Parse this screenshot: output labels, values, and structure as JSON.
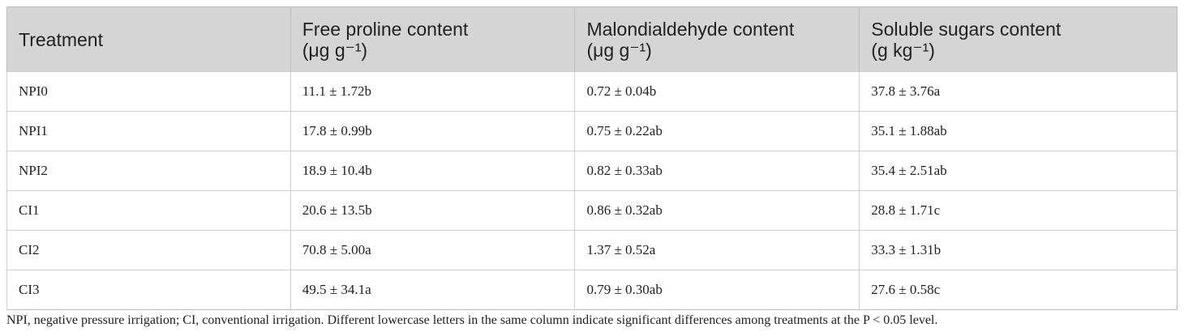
{
  "table": {
    "header": [
      [
        "Treatment"
      ],
      [
        "Free proline content",
        "(μg g⁻¹)"
      ],
      [
        "Malondialdehyde content",
        "(μg g⁻¹)"
      ],
      [
        "Soluble sugars content",
        "(g kg⁻¹)"
      ]
    ],
    "rows": [
      [
        "NPI0",
        "11.1 ± 1.72b",
        "0.72 ± 0.04b",
        "37.8 ± 3.76a"
      ],
      [
        "NPI1",
        "17.8 ± 0.99b",
        "0.75 ± 0.22ab",
        "35.1 ± 1.88ab"
      ],
      [
        "NPI2",
        "18.9 ± 10.4b",
        "0.82 ± 0.33ab",
        "35.4 ± 2.51ab"
      ],
      [
        "CI1",
        "20.6 ± 13.5b",
        "0.86 ± 0.32ab",
        "28.8 ± 1.71c"
      ],
      [
        "CI2",
        "70.8 ± 5.00a",
        "1.37 ± 0.52a",
        "33.3 ± 1.31b"
      ],
      [
        "CI3",
        "49.5 ± 34.1a",
        "0.79 ± 0.30ab",
        "27.6 ± 0.58c"
      ]
    ]
  },
  "footnote": "NPI, negative pressure irrigation; CI, conventional irrigation. Different lowercase letters in the same column indicate significant differences among treatments at the P < 0.05 level."
}
